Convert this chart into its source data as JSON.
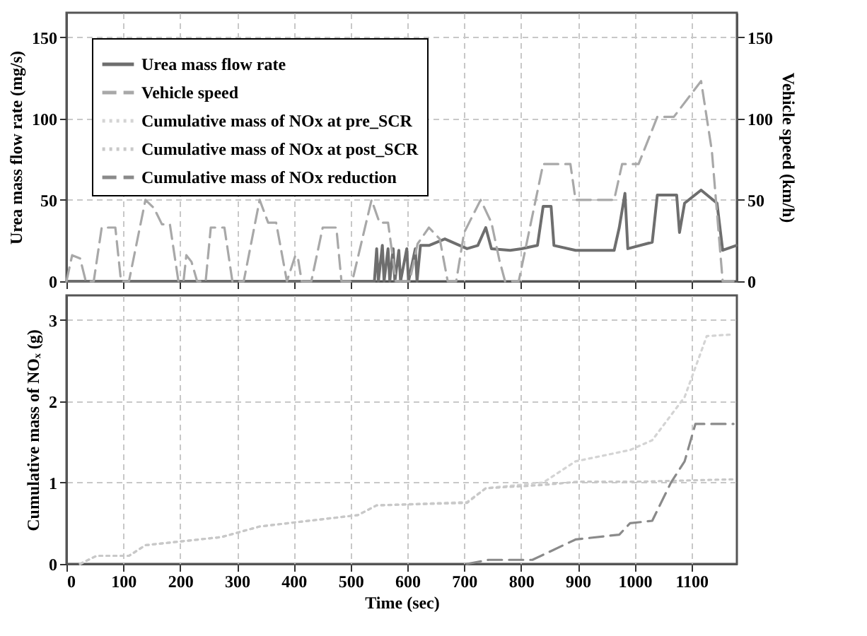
{
  "chart_data": [
    {
      "type": "line",
      "xlim": [
        0,
        1180
      ],
      "xticks": [
        0,
        100,
        200,
        300,
        400,
        500,
        600,
        700,
        800,
        900,
        1000,
        1100
      ],
      "ylim": [
        0,
        165
      ],
      "yticks": [
        0,
        50,
        100,
        150
      ],
      "y2lim": [
        0,
        165
      ],
      "y2ticks": [
        0,
        50,
        100,
        150
      ],
      "ylabel": "Urea mass flow rate (mg/s)",
      "y2label": "Vehicle speed (km/h)",
      "tick_labels": "y",
      "grid": true,
      "legend": "top left",
      "series": [
        {
          "name": "Urea mass flow rate",
          "color": "#6e6e6e",
          "line_style": "solid",
          "x": [
            0,
            542,
            546,
            549,
            556,
            559,
            566,
            569,
            575,
            578,
            585,
            588,
            599,
            602,
            614,
            617,
            623,
            638,
            666,
            705,
            724,
            738,
            748,
            781,
            801,
            829,
            839,
            853,
            858,
            896,
            964,
            973,
            983,
            988,
            1031,
            1040,
            1074,
            1079,
            1088,
            1117,
            1145,
            1155,
            1179
          ],
          "values": [
            0,
            0,
            20,
            0,
            22,
            0,
            20,
            0,
            20,
            0,
            19,
            0,
            20,
            0,
            20,
            0,
            22,
            22,
            26,
            20,
            22,
            33,
            20,
            19,
            20,
            22,
            46,
            46,
            22,
            19,
            19,
            33,
            54,
            20,
            24,
            53,
            53,
            30,
            48,
            56,
            48,
            19,
            22
          ]
        },
        {
          "name": "Vehicle speed",
          "color": "#a8a8a8",
          "line_style": "dashed",
          "axis": "y2",
          "x": [
            0,
            10,
            24,
            34,
            48,
            62,
            86,
            96,
            110,
            139,
            154,
            168,
            182,
            197,
            206,
            211,
            220,
            230,
            245,
            254,
            278,
            292,
            312,
            340,
            355,
            369,
            388,
            403,
            408,
            414,
            431,
            451,
            475,
            484,
            503,
            537,
            551,
            566,
            580,
            604,
            618,
            638,
            657,
            671,
            686,
            700,
            729,
            748,
            762,
            772,
            796,
            839,
            887,
            896,
            964,
            978,
            1007,
            1040,
            1069,
            1117,
            1136,
            1155,
            1174
          ],
          "values": [
            0,
            16,
            14,
            0,
            0,
            33,
            33,
            0,
            0,
            50,
            45,
            35,
            35,
            0,
            0,
            16,
            12,
            0,
            0,
            33,
            33,
            0,
            0,
            50,
            36,
            36,
            0,
            16,
            13,
            0,
            0,
            33,
            33,
            0,
            0,
            50,
            36,
            36,
            0,
            0,
            23,
            33,
            26,
            0,
            0,
            30,
            50,
            36,
            13,
            0,
            0,
            72,
            72,
            50,
            50,
            72,
            72,
            101,
            101,
            123,
            80,
            0,
            0
          ]
        }
      ]
    },
    {
      "type": "line",
      "xlim": [
        0,
        1180
      ],
      "xticks": [
        0,
        100,
        200,
        300,
        400,
        500,
        600,
        700,
        800,
        900,
        1000,
        1100
      ],
      "ylim": [
        0,
        3.3
      ],
      "yticks": [
        0,
        1,
        2,
        3
      ],
      "xlabel": "Time (sec)",
      "ylabel": "Cumulative mass of NOₓ (g)",
      "grid": true,
      "legend": "top left",
      "series": [
        {
          "name": "Cumulative mass of NOx at pre_SCR",
          "color": "#d4d4d4",
          "line_style": "dotted",
          "x": [
            24,
            53,
            110,
            139,
            273,
            340,
            513,
            546,
            705,
            738,
            839,
            896,
            992,
            1031,
            1088,
            1127,
            1174
          ],
          "values": [
            0,
            0.1,
            0.1,
            0.23,
            0.33,
            0.46,
            0.6,
            0.72,
            0.76,
            0.93,
            1.0,
            1.26,
            1.4,
            1.52,
            2.05,
            2.8,
            2.82
          ]
        },
        {
          "name": "Cumulative mass of NOx at post_SCR",
          "color": "#c8c8c8",
          "line_style": "dotted",
          "x": [
            24,
            53,
            110,
            139,
            273,
            340,
            513,
            546,
            705,
            738,
            839,
            900,
            1000,
            1174
          ],
          "values": [
            0,
            0.1,
            0.1,
            0.23,
            0.33,
            0.46,
            0.6,
            0.72,
            0.75,
            0.93,
            0.97,
            1.01,
            1.01,
            1.04
          ]
        },
        {
          "name": "Cumulative mass of NOx reduction",
          "color": "#8a8a8a",
          "line_style": "dashed",
          "x": [
            705,
            743,
            820,
            896,
            973,
            992,
            1031,
            1064,
            1088,
            1107,
            1174
          ],
          "values": [
            0,
            0.05,
            0.05,
            0.3,
            0.36,
            0.5,
            0.53,
            1.0,
            1.26,
            1.72,
            1.72
          ]
        }
      ]
    }
  ]
}
